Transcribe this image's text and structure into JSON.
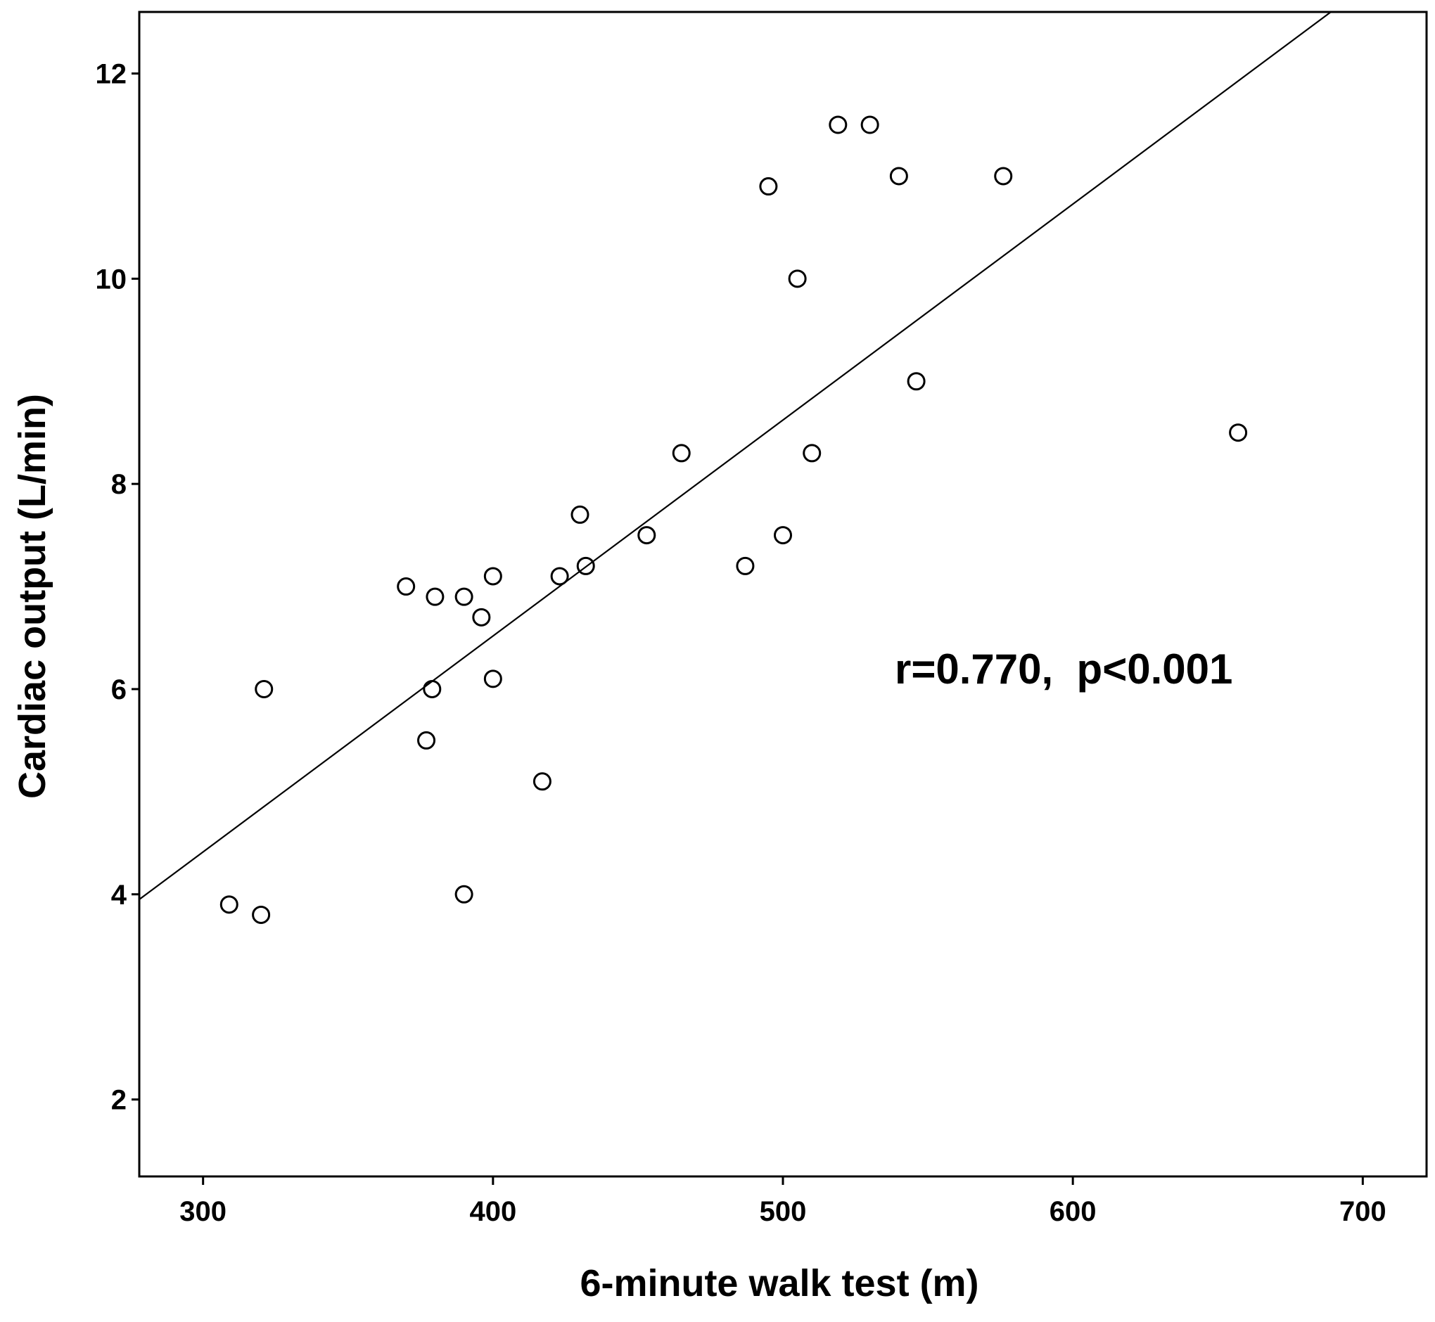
{
  "chart_data": {
    "type": "scatter",
    "title": "",
    "xlabel": "6-minute walk test (m)",
    "ylabel": "Cardiac output (L/min)",
    "xlim": [
      278,
      722
    ],
    "ylim": [
      1.25,
      12.6
    ],
    "xticks": [
      300,
      400,
      500,
      600,
      700
    ],
    "yticks": [
      2,
      4,
      6,
      8,
      10,
      12
    ],
    "x_tick_labels": [
      "300",
      "400",
      "500",
      "600",
      "700"
    ],
    "y_tick_labels": [
      "2",
      "4",
      "6",
      "8",
      "10",
      "12"
    ],
    "grid": false,
    "legend": "none",
    "annotation": "r=0.770,  p<0.001",
    "marker_color": "#000000",
    "marker_fill": "none",
    "series": [
      {
        "points": [
          {
            "x": 309,
            "y": 3.9
          },
          {
            "x": 320,
            "y": 3.8
          },
          {
            "x": 321,
            "y": 6.0
          },
          {
            "x": 370,
            "y": 7.0
          },
          {
            "x": 377,
            "y": 5.5
          },
          {
            "x": 379,
            "y": 6.0
          },
          {
            "x": 380,
            "y": 6.9
          },
          {
            "x": 390,
            "y": 6.9
          },
          {
            "x": 390,
            "y": 4.0
          },
          {
            "x": 396,
            "y": 6.7
          },
          {
            "x": 400,
            "y": 7.1
          },
          {
            "x": 400,
            "y": 6.1
          },
          {
            "x": 417,
            "y": 5.1
          },
          {
            "x": 423,
            "y": 7.1
          },
          {
            "x": 430,
            "y": 7.7
          },
          {
            "x": 432,
            "y": 7.2
          },
          {
            "x": 453,
            "y": 7.5
          },
          {
            "x": 465,
            "y": 8.3
          },
          {
            "x": 487,
            "y": 7.2
          },
          {
            "x": 495,
            "y": 10.9
          },
          {
            "x": 500,
            "y": 7.5
          },
          {
            "x": 505,
            "y": 10.0
          },
          {
            "x": 510,
            "y": 8.3
          },
          {
            "x": 519,
            "y": 11.5
          },
          {
            "x": 530,
            "y": 11.5
          },
          {
            "x": 540,
            "y": 11.0
          },
          {
            "x": 546,
            "y": 9.0
          },
          {
            "x": 576,
            "y": 11.0
          },
          {
            "x": 657,
            "y": 8.5
          }
        ]
      }
    ],
    "fit_line": {
      "x": [
        278,
        689
      ],
      "y": [
        3.95,
        12.6
      ]
    }
  }
}
